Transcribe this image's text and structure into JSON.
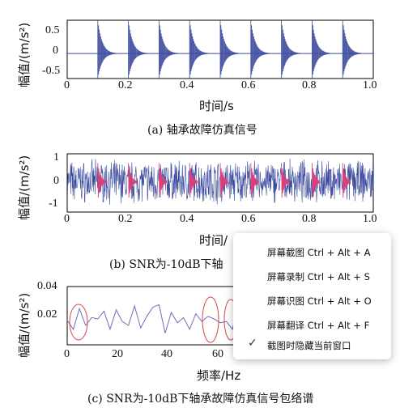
{
  "charts": {
    "a": {
      "y_ticks": [
        "0.5",
        "0",
        "-0.5"
      ],
      "x_ticks": [
        "0",
        "0.2",
        "0.4",
        "0.6",
        "0.8",
        "1.0"
      ],
      "ylabel": "幅值/(m/s²)",
      "xlabel": "时间/s",
      "caption": "(a) 轴承故障仿真信号"
    },
    "b": {
      "y_ticks": [
        "1",
        "0",
        "-1"
      ],
      "x_ticks": [
        "0",
        "0.2",
        "0.4",
        "0.6",
        "0.8",
        "1.0"
      ],
      "ylabel": "幅值/(m/s²)",
      "xlabel": "时间/",
      "caption": "(b) SNR为-10dB下轴"
    },
    "c": {
      "y_ticks": [
        "0.04",
        "0.02"
      ],
      "x_ticks": [
        "0",
        "20",
        "40",
        "60"
      ],
      "ylabel": "幅值/(m/s²)",
      "xlabel": "频率/Hz",
      "caption": "(c) SNR为-10dB下轴承故障仿真信号包络谱"
    }
  },
  "chart_data": [
    {
      "type": "line",
      "x": [
        0.1,
        0.2,
        0.3,
        0.4,
        0.5,
        0.6,
        0.7,
        0.8,
        0.9
      ],
      "series": [
        {
          "values": [
            0.8,
            0.8,
            0.8,
            0.8,
            0.8,
            0.8,
            0.8,
            0.8,
            0.8
          ]
        }
      ],
      "xlim": [
        0,
        1.0
      ],
      "ylim": [
        -0.6,
        0.8
      ],
      "color": "#3c4a9e"
    },
    {
      "type": "line",
      "x": [
        0.1,
        0.2,
        0.3,
        0.4,
        0.5,
        0.6,
        0.7,
        0.8,
        0.9
      ],
      "xlim": [
        0,
        1.0
      ],
      "ylim": [
        -1.3,
        1.2
      ],
      "colors": [
        "#3c4a9e",
        "#d9407a"
      ]
    },
    {
      "type": "line",
      "x": [
        0,
        2,
        4,
        6,
        8,
        10,
        12,
        14,
        16,
        18,
        20,
        22,
        24,
        26,
        28,
        30,
        32,
        34,
        36,
        38,
        40,
        42,
        44,
        46,
        48,
        50,
        52,
        54,
        56,
        58,
        60,
        62,
        64,
        66,
        68,
        70
      ],
      "series": [
        {
          "values": [
            0.019,
            0.012,
            0.028,
            0.015,
            0.021,
            0.02,
            0.026,
            0.012,
            0.027,
            0.018,
            0.015,
            0.03,
            0.013,
            0.022,
            0.029,
            0.031,
            0.009,
            0.025,
            0.017,
            0.021,
            0.012,
            0.024,
            0.018,
            0.022,
            0.02,
            0.017,
            0.018,
            0.012,
            0.034,
            0.014,
            0.028,
            0.01,
            0.016,
            0.008,
            0.026,
            0.012
          ]
        }
      ],
      "xlim": [
        0,
        100
      ],
      "ylim": [
        0,
        0.045
      ],
      "color": "#6b6fb8",
      "ellipse_color": "#d44a4a"
    }
  ],
  "context_menu": {
    "items": [
      {
        "label": "屏幕截图 Ctrl + Alt + A"
      },
      {
        "label": "屏幕录制 Ctrl + Alt + S"
      },
      {
        "label": "屏幕识图 Ctrl + Alt + O"
      },
      {
        "label": "屏幕翻译 Ctrl + Alt + F"
      },
      {
        "label": "截图时隐藏当前窗口",
        "checked": true
      }
    ]
  }
}
